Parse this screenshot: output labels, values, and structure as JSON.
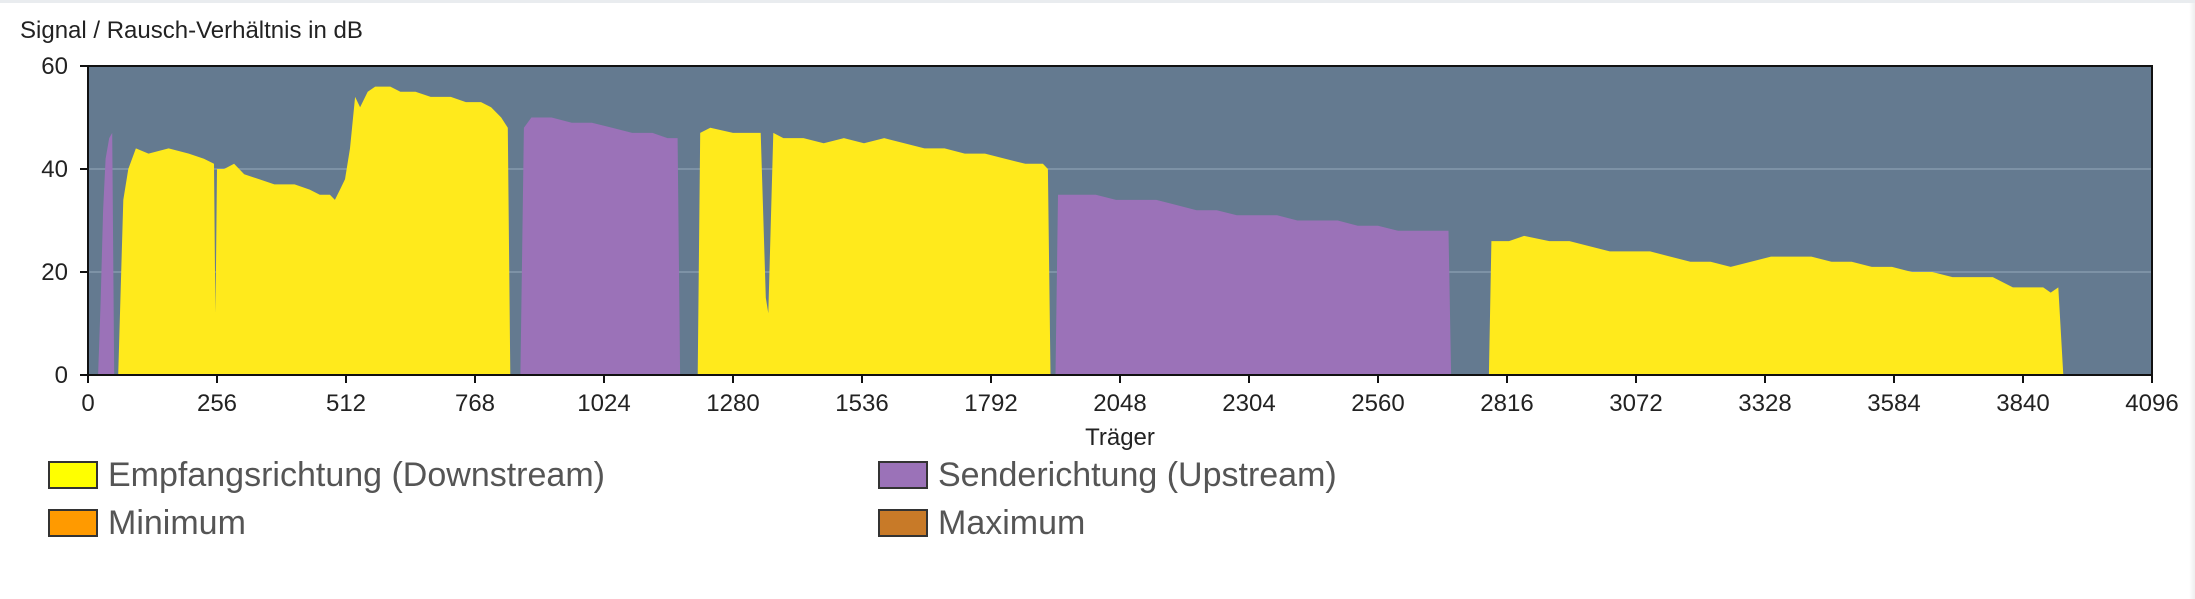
{
  "chart_data": {
    "type": "area",
    "title": "Signal / Rausch-Verhältnis in dB",
    "xlabel": "Träger",
    "ylabel": "",
    "xlim": [
      0,
      4096
    ],
    "ylim": [
      0,
      60
    ],
    "x_ticks": [
      0,
      256,
      512,
      768,
      1024,
      1280,
      1536,
      1792,
      2048,
      2304,
      2560,
      2816,
      3072,
      3328,
      3584,
      3840,
      4096
    ],
    "y_ticks": [
      0,
      20,
      40,
      60
    ],
    "grid": "horizontal",
    "legend_position": "bottom",
    "series": [
      {
        "name": "Empfangsrichtung (Downstream)",
        "color": "#ffea1c",
        "segments": [
          [
            [
              60,
              0
            ],
            [
              70,
              34
            ],
            [
              80,
              40
            ],
            [
              95,
              44
            ],
            [
              120,
              43
            ],
            [
              160,
              44
            ],
            [
              200,
              43
            ],
            [
              230,
              42
            ],
            [
              250,
              41
            ],
            [
              252,
              20
            ],
            [
              253,
              12
            ],
            [
              256,
              40
            ],
            [
              270,
              40
            ],
            [
              290,
              41
            ],
            [
              310,
              39
            ],
            [
              340,
              38
            ],
            [
              370,
              37
            ],
            [
              410,
              37
            ],
            [
              440,
              36
            ],
            [
              460,
              35
            ],
            [
              480,
              35
            ],
            [
              490,
              34
            ],
            [
              500,
              36
            ],
            [
              510,
              38
            ],
            [
              520,
              44
            ],
            [
              530,
              54
            ],
            [
              540,
              52
            ],
            [
              555,
              55
            ],
            [
              570,
              56
            ],
            [
              600,
              56
            ],
            [
              620,
              55
            ],
            [
              650,
              55
            ],
            [
              680,
              54
            ],
            [
              700,
              54
            ],
            [
              720,
              54
            ],
            [
              750,
              53
            ],
            [
              780,
              53
            ],
            [
              800,
              52
            ],
            [
              820,
              50
            ],
            [
              833,
              48
            ],
            [
              838,
              0
            ]
          ],
          [
            [
              1210,
              0
            ],
            [
              1215,
              47
            ],
            [
              1235,
              48
            ],
            [
              1280,
              47
            ],
            [
              1320,
              47
            ],
            [
              1335,
              47
            ],
            [
              1345,
              15
            ],
            [
              1350,
              12
            ],
            [
              1360,
              47
            ],
            [
              1380,
              46
            ],
            [
              1420,
              46
            ],
            [
              1460,
              45
            ],
            [
              1500,
              46
            ],
            [
              1540,
              45
            ],
            [
              1580,
              46
            ],
            [
              1620,
              45
            ],
            [
              1660,
              44
            ],
            [
              1700,
              44
            ],
            [
              1740,
              43
            ],
            [
              1780,
              43
            ],
            [
              1820,
              42
            ],
            [
              1860,
              41
            ],
            [
              1880,
              41
            ],
            [
              1895,
              41
            ],
            [
              1905,
              40
            ],
            [
              1910,
              0
            ]
          ],
          [
            [
              2780,
              0
            ],
            [
              2785,
              26
            ],
            [
              2820,
              26
            ],
            [
              2850,
              27
            ],
            [
              2900,
              26
            ],
            [
              2940,
              26
            ],
            [
              2980,
              25
            ],
            [
              3020,
              24
            ],
            [
              3060,
              24
            ],
            [
              3100,
              24
            ],
            [
              3140,
              23
            ],
            [
              3180,
              22
            ],
            [
              3220,
              22
            ],
            [
              3260,
              21
            ],
            [
              3300,
              22
            ],
            [
              3340,
              23
            ],
            [
              3380,
              23
            ],
            [
              3420,
              23
            ],
            [
              3460,
              22
            ],
            [
              3500,
              22
            ],
            [
              3540,
              21
            ],
            [
              3580,
              21
            ],
            [
              3620,
              20
            ],
            [
              3660,
              20
            ],
            [
              3700,
              19
            ],
            [
              3740,
              19
            ],
            [
              3780,
              19
            ],
            [
              3800,
              18
            ],
            [
              3820,
              17
            ],
            [
              3880,
              17
            ],
            [
              3895,
              16
            ],
            [
              3910,
              17
            ],
            [
              3920,
              0
            ]
          ]
        ]
      },
      {
        "name": "Senderichtung (Upstream)",
        "color": "#9b72b8",
        "segments": [
          [
            [
              20,
              0
            ],
            [
              25,
              14
            ],
            [
              30,
              32
            ],
            [
              35,
              42
            ],
            [
              42,
              46
            ],
            [
              48,
              47
            ],
            [
              52,
              0
            ]
          ],
          [
            [
              858,
              0
            ],
            [
              865,
              48
            ],
            [
              880,
              50
            ],
            [
              920,
              50
            ],
            [
              960,
              49
            ],
            [
              1000,
              49
            ],
            [
              1040,
              48
            ],
            [
              1080,
              47
            ],
            [
              1120,
              47
            ],
            [
              1150,
              46
            ],
            [
              1170,
              46
            ],
            [
              1175,
              0
            ]
          ],
          [
            [
              1920,
              0
            ],
            [
              1925,
              35
            ],
            [
              1960,
              35
            ],
            [
              2000,
              35
            ],
            [
              2040,
              34
            ],
            [
              2080,
              34
            ],
            [
              2120,
              34
            ],
            [
              2160,
              33
            ],
            [
              2200,
              32
            ],
            [
              2240,
              32
            ],
            [
              2280,
              31
            ],
            [
              2320,
              31
            ],
            [
              2360,
              31
            ],
            [
              2400,
              30
            ],
            [
              2440,
              30
            ],
            [
              2480,
              30
            ],
            [
              2520,
              29
            ],
            [
              2560,
              29
            ],
            [
              2600,
              28
            ],
            [
              2640,
              28
            ],
            [
              2680,
              28
            ],
            [
              2700,
              28
            ],
            [
              2705,
              0
            ]
          ]
        ]
      }
    ],
    "legend": [
      {
        "name": "Empfangsrichtung (Downstream)",
        "color": "#ffff00"
      },
      {
        "name": "Senderichtung (Upstream)",
        "color": "#9b72b8"
      },
      {
        "name": "Minimum",
        "color": "#ff9a00"
      },
      {
        "name": "Maximum",
        "color": "#c87a28"
      }
    ]
  },
  "colors": {
    "plot_background": "#647a90",
    "grid": "#7d92a6",
    "axis": "#111111"
  }
}
